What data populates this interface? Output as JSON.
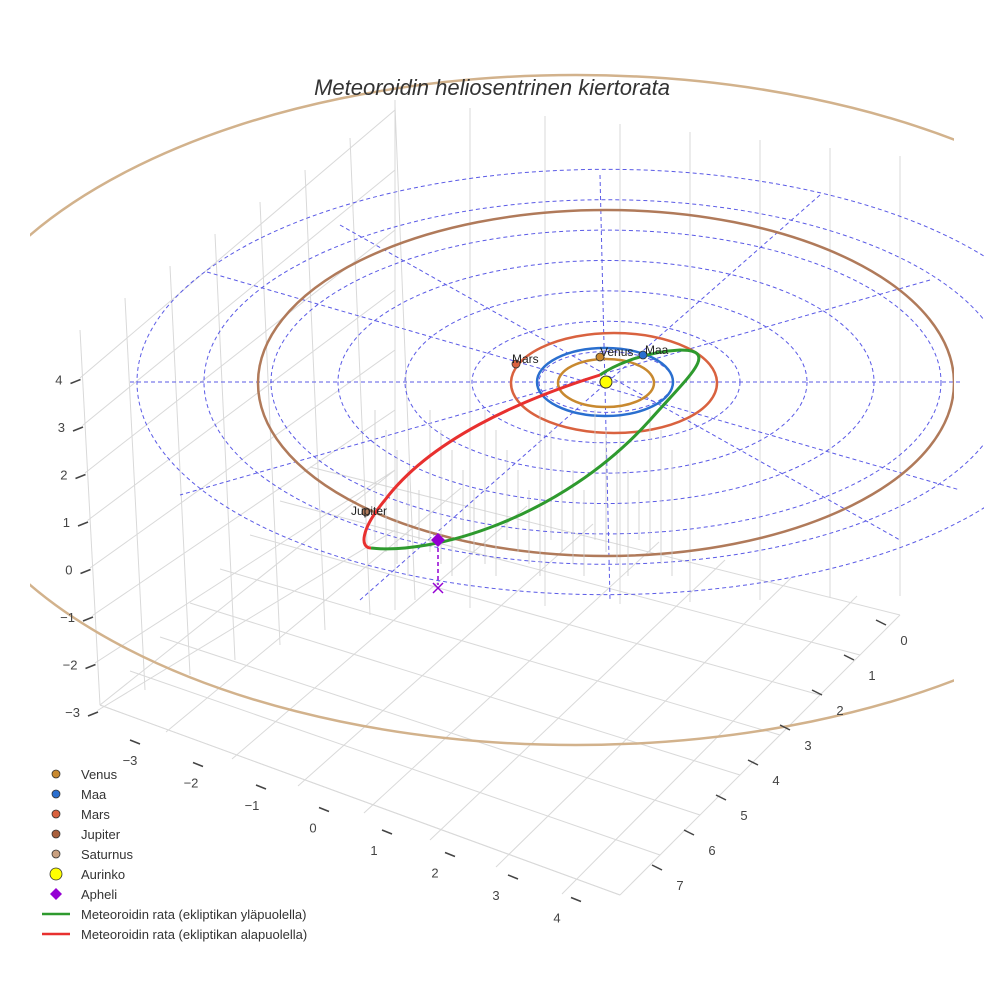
{
  "chart_data": {
    "type": "3d-orbit",
    "title": "Meteoroidin heliosentrinen kiertorata",
    "axes": {
      "x_ticks": [
        "−3",
        "−2",
        "−1",
        "0",
        "1",
        "2",
        "3",
        "4"
      ],
      "y_ticks": [
        "0",
        "1",
        "2",
        "3",
        "4",
        "5",
        "6",
        "7"
      ],
      "z_ticks": [
        "−3",
        "−2",
        "−1",
        "0",
        "1",
        "2",
        "3",
        "4"
      ]
    },
    "planets": [
      {
        "name": "Venus",
        "label": "Venus",
        "orbit_radius_au": 0.72,
        "color": "#c8892f"
      },
      {
        "name": "Maa",
        "label": "Maa",
        "orbit_radius_au": 1.0,
        "color": "#2a6fcf"
      },
      {
        "name": "Mars",
        "label": "Mars",
        "orbit_radius_au": 1.52,
        "color": "#d9623f"
      },
      {
        "name": "Jupiter",
        "label": "Jupiter",
        "orbit_radius_au": 5.2,
        "color": "#b07a5a"
      },
      {
        "name": "Saturnus",
        "label": "",
        "orbit_radius_au": 9.5,
        "color": "#d2b28c"
      }
    ],
    "sun": {
      "name": "Aurinko",
      "color": "#ffff00"
    },
    "aphelion": {
      "name": "Apheli",
      "color": "#9400d3"
    },
    "orbit_segments": [
      {
        "name": "Meteoroidin rata (ekliptikan yläpuolella)",
        "color": "#2e9a2e"
      },
      {
        "name": "Meteoroidin rata (ekliptikan alapuolella)",
        "color": "#e8302f"
      }
    ],
    "reference_circles_au": [
      1,
      2,
      3,
      4,
      5,
      6,
      7
    ]
  },
  "legend": {
    "items": [
      {
        "label": "Venus",
        "color": "#c8892f",
        "marker": "circle"
      },
      {
        "label": "Maa",
        "color": "#2a6fcf",
        "marker": "circle"
      },
      {
        "label": "Mars",
        "color": "#d9623f",
        "marker": "circle"
      },
      {
        "label": "Jupiter",
        "color": "#a85f3c",
        "marker": "circle"
      },
      {
        "label": "Saturnus",
        "color": "#c9a07f",
        "marker": "circle"
      },
      {
        "label": "Aurinko",
        "color": "#ffff00",
        "marker": "circle-large"
      },
      {
        "label": "Apheli",
        "color": "#9400d3",
        "marker": "diamond"
      },
      {
        "label": "Meteoroidin rata (ekliptikan yläpuolella)",
        "color": "#2e9a2e",
        "marker": "line"
      },
      {
        "label": "Meteoroidin rata (ekliptikan alapuolella)",
        "color": "#e8302f",
        "marker": "line"
      }
    ]
  }
}
